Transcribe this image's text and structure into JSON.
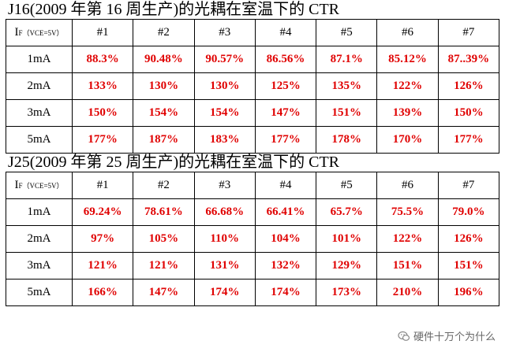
{
  "tables": [
    {
      "title": "J16(2009 年第 16 周生产)的光耦在室温下的 CTR",
      "header_main": "I",
      "header_sub": "F（VCE=5V）",
      "columns": [
        "#1",
        "#2",
        "#3",
        "#4",
        "#5",
        "#6",
        "#7"
      ],
      "rows": [
        {
          "label": "1mA",
          "values": [
            "88.3%",
            "90.48%",
            "90.57%",
            "86.56%",
            "87.1%",
            "85.12%",
            "87..39%"
          ]
        },
        {
          "label": "2mA",
          "values": [
            "133%",
            "130%",
            "130%",
            "125%",
            "135%",
            "122%",
            "126%"
          ]
        },
        {
          "label": "3mA",
          "values": [
            "150%",
            "154%",
            "154%",
            "147%",
            "151%",
            "139%",
            "150%"
          ]
        },
        {
          "label": "5mA",
          "values": [
            "177%",
            "187%",
            "183%",
            "177%",
            "178%",
            "170%",
            "177%"
          ]
        }
      ]
    },
    {
      "title": "J25(2009 年第 25 周生产)的光耦在室温下的 CTR",
      "header_main": "I",
      "header_sub": "F（VCE=5V）",
      "columns": [
        "#1",
        "#2",
        "#3",
        "#4",
        "#5",
        "#6",
        "#7"
      ],
      "rows": [
        {
          "label": "1mA",
          "values": [
            "69.24%",
            "78.61%",
            "66.68%",
            "66.41%",
            "65.7%",
            "75.5%",
            "79.0%"
          ]
        },
        {
          "label": "2mA",
          "values": [
            "97%",
            "105%",
            "110%",
            "104%",
            "101%",
            "122%",
            "126%"
          ]
        },
        {
          "label": "3mA",
          "values": [
            "121%",
            "121%",
            "131%",
            "132%",
            "129%",
            "151%",
            "151%"
          ]
        },
        {
          "label": "5mA",
          "values": [
            "166%",
            "147%",
            "174%",
            "174%",
            "173%",
            "210%",
            "196%"
          ]
        }
      ]
    }
  ],
  "watermark": "硬件十万个为什么",
  "colors": {
    "value_text": "#e00000",
    "border": "#000000"
  },
  "icons": {
    "watermark": "wechat-icon"
  }
}
